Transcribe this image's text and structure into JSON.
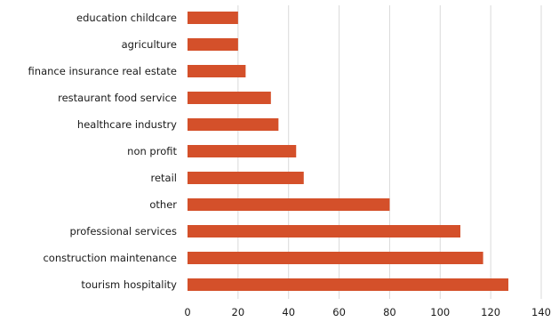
{
  "chart_data": {
    "type": "bar",
    "orientation": "horizontal",
    "categories": [
      "education childcare",
      "agriculture",
      "finance insurance real estate",
      "restaurant food service",
      "healthcare industry",
      "non profit",
      "retail",
      "other",
      "professional services",
      "construction maintenance",
      "tourism hospitality"
    ],
    "series": [
      {
        "values": [
          20,
          20,
          23,
          33,
          36,
          43,
          46,
          80,
          108,
          117,
          127
        ]
      }
    ],
    "xlim": [
      0,
      140
    ],
    "xticks": [
      "0",
      "20",
      "40",
      "60",
      "80",
      "100",
      "120",
      "140"
    ],
    "grid": true,
    "bar_color": "#d4502a",
    "grid_color": "#d9d9d9",
    "title": "",
    "xlabel": "",
    "ylabel": ""
  }
}
